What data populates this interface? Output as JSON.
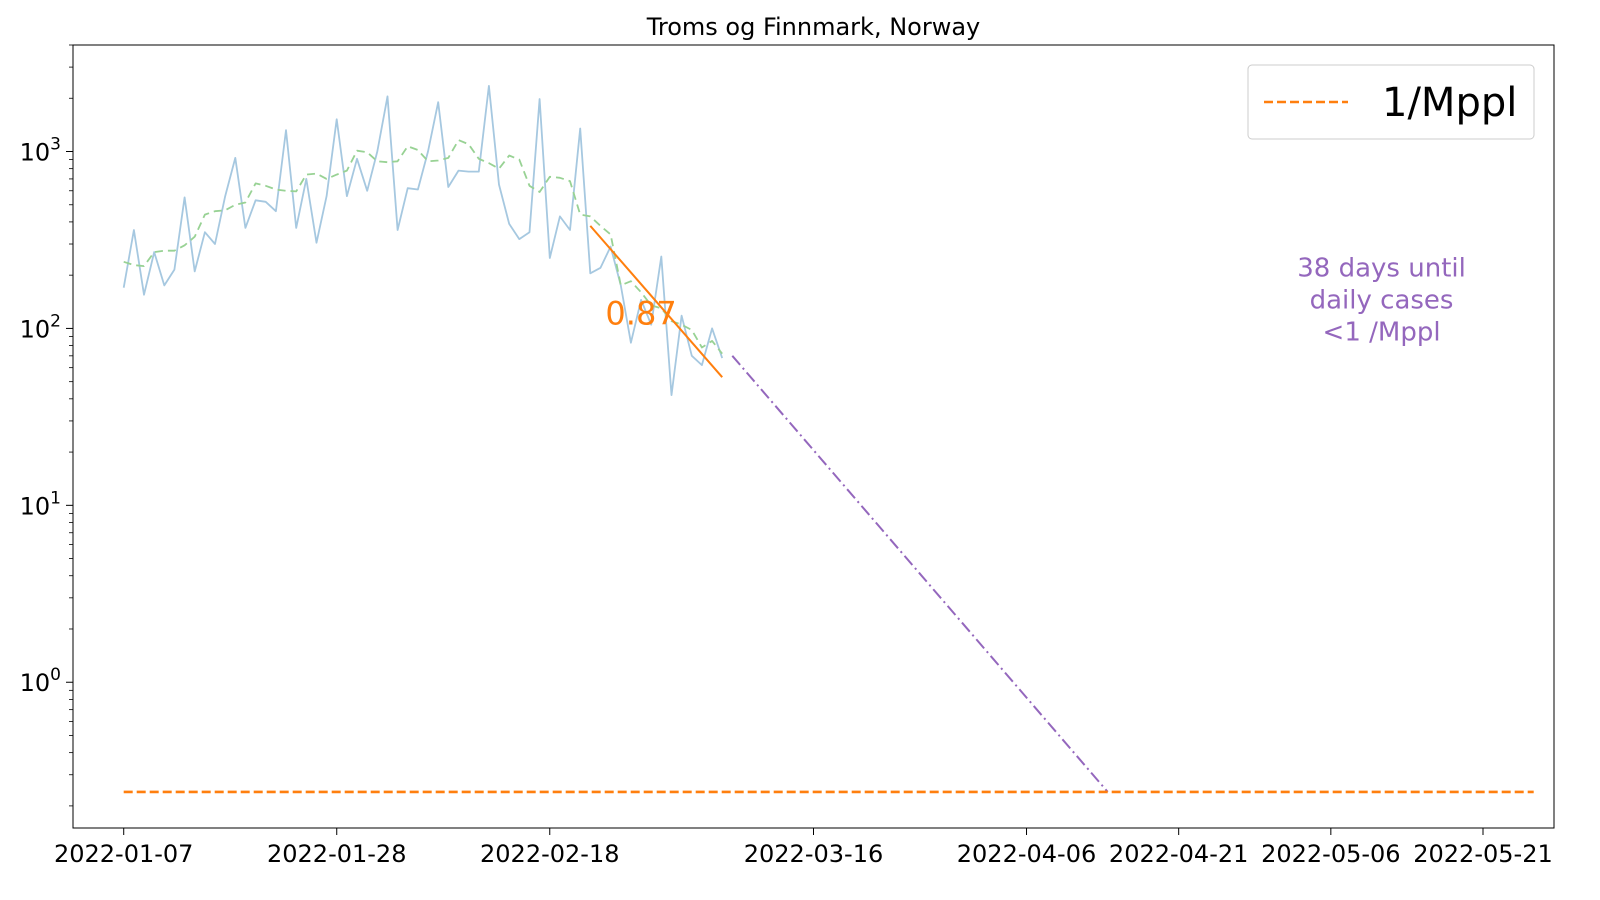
{
  "chart_data": {
    "type": "line",
    "title": "Troms og Finnmark, Norway",
    "xlabel": "",
    "ylabel": "",
    "y_scale": "log",
    "ylim": [
      0.15,
      4000
    ],
    "xlim": [
      "2022-01-02",
      "2022-05-28"
    ],
    "x_ticks": [
      "2022-01-07",
      "2022-01-28",
      "2022-02-18",
      "2022-03-16",
      "2022-04-06",
      "2022-04-21",
      "2022-05-06",
      "2022-05-21"
    ],
    "y_ticks": [
      {
        "value": 1,
        "base": "10",
        "exp": "0"
      },
      {
        "value": 10,
        "base": "10",
        "exp": "1"
      },
      {
        "value": 100,
        "base": "10",
        "exp": "2"
      },
      {
        "value": 1000,
        "base": "10",
        "exp": "3"
      }
    ],
    "grid": false,
    "colors": {
      "daily": "#a6c8e0",
      "rolling": "#98d294",
      "fit": "#ff7f0e",
      "projection": "#9467bd",
      "threshold": "#ff7f0e"
    },
    "series": [
      {
        "key": "daily",
        "style": "solid",
        "points": [
          [
            "2022-01-07",
            170
          ],
          [
            "2022-01-08",
            360
          ],
          [
            "2022-01-09",
            155
          ],
          [
            "2022-01-10",
            270
          ],
          [
            "2022-01-11",
            175
          ],
          [
            "2022-01-12",
            215
          ],
          [
            "2022-01-13",
            550
          ],
          [
            "2022-01-14",
            210
          ],
          [
            "2022-01-15",
            350
          ],
          [
            "2022-01-16",
            300
          ],
          [
            "2022-01-17",
            560
          ],
          [
            "2022-01-18",
            920
          ],
          [
            "2022-01-19",
            370
          ],
          [
            "2022-01-20",
            530
          ],
          [
            "2022-01-21",
            520
          ],
          [
            "2022-01-22",
            460
          ],
          [
            "2022-01-23",
            1320
          ],
          [
            "2022-01-24",
            370
          ],
          [
            "2022-01-25",
            700
          ],
          [
            "2022-01-26",
            305
          ],
          [
            "2022-01-27",
            560
          ],
          [
            "2022-01-28",
            1520
          ],
          [
            "2022-01-29",
            560
          ],
          [
            "2022-01-30",
            910
          ],
          [
            "2022-01-31",
            600
          ],
          [
            "2022-02-01",
            1000
          ],
          [
            "2022-02-02",
            2050
          ],
          [
            "2022-02-03",
            360
          ],
          [
            "2022-02-04",
            620
          ],
          [
            "2022-02-05",
            610
          ],
          [
            "2022-02-06",
            1000
          ],
          [
            "2022-02-07",
            1900
          ],
          [
            "2022-02-08",
            630
          ],
          [
            "2022-02-09",
            780
          ],
          [
            "2022-02-10",
            770
          ],
          [
            "2022-02-11",
            770
          ],
          [
            "2022-02-12",
            2350
          ],
          [
            "2022-02-13",
            650
          ],
          [
            "2022-02-14",
            390
          ],
          [
            "2022-02-15",
            320
          ],
          [
            "2022-02-16",
            350
          ],
          [
            "2022-02-17",
            1980
          ],
          [
            "2022-02-18",
            250
          ],
          [
            "2022-02-19",
            430
          ],
          [
            "2022-02-20",
            360
          ],
          [
            "2022-02-21",
            1350
          ],
          [
            "2022-02-22",
            205
          ],
          [
            "2022-02-23",
            220
          ],
          [
            "2022-02-24",
            290
          ],
          [
            "2022-02-25",
            175
          ],
          [
            "2022-02-26",
            83
          ],
          [
            "2022-02-27",
            145
          ],
          [
            "2022-02-28",
            105
          ],
          [
            "2022-03-01",
            255
          ],
          [
            "2022-03-02",
            42
          ],
          [
            "2022-03-03",
            118
          ],
          [
            "2022-03-04",
            70
          ],
          [
            "2022-03-05",
            62
          ],
          [
            "2022-03-06",
            100
          ],
          [
            "2022-03-07",
            68
          ]
        ]
      },
      {
        "key": "rolling",
        "style": "dashed",
        "points": [
          [
            "2022-01-07",
            238
          ],
          [
            "2022-01-08",
            228
          ],
          [
            "2022-01-09",
            225
          ],
          [
            "2022-01-10",
            270
          ],
          [
            "2022-01-11",
            275
          ],
          [
            "2022-01-12",
            275
          ],
          [
            "2022-01-13",
            295
          ],
          [
            "2022-01-14",
            330
          ],
          [
            "2022-01-15",
            440
          ],
          [
            "2022-01-16",
            460
          ],
          [
            "2022-01-17",
            465
          ],
          [
            "2022-01-18",
            500
          ],
          [
            "2022-01-19",
            515
          ],
          [
            "2022-01-20",
            660
          ],
          [
            "2022-01-21",
            640
          ],
          [
            "2022-01-22",
            610
          ],
          [
            "2022-01-23",
            600
          ],
          [
            "2022-01-24",
            595
          ],
          [
            "2022-01-25",
            740
          ],
          [
            "2022-01-26",
            750
          ],
          [
            "2022-01-27",
            700
          ],
          [
            "2022-01-28",
            740
          ],
          [
            "2022-01-29",
            780
          ],
          [
            "2022-01-30",
            1010
          ],
          [
            "2022-01-31",
            990
          ],
          [
            "2022-02-01",
            880
          ],
          [
            "2022-02-02",
            870
          ],
          [
            "2022-02-03",
            880
          ],
          [
            "2022-02-04",
            1070
          ],
          [
            "2022-02-05",
            1020
          ],
          [
            "2022-02-06",
            880
          ],
          [
            "2022-02-07",
            890
          ],
          [
            "2022-02-08",
            920
          ],
          [
            "2022-02-09",
            1160
          ],
          [
            "2022-02-10",
            1100
          ],
          [
            "2022-02-11",
            910
          ],
          [
            "2022-02-12",
            860
          ],
          [
            "2022-02-13",
            800
          ],
          [
            "2022-02-14",
            950
          ],
          [
            "2022-02-15",
            900
          ],
          [
            "2022-02-16",
            640
          ],
          [
            "2022-02-17",
            590
          ],
          [
            "2022-02-18",
            720
          ],
          [
            "2022-02-19",
            710
          ],
          [
            "2022-02-20",
            680
          ],
          [
            "2022-02-21",
            440
          ],
          [
            "2022-02-22",
            430
          ],
          [
            "2022-02-23",
            380
          ],
          [
            "2022-02-24",
            340
          ],
          [
            "2022-02-25",
            175
          ],
          [
            "2022-02-26",
            185
          ],
          [
            "2022-02-27",
            160
          ],
          [
            "2022-02-28",
            135
          ],
          [
            "2022-03-01",
            130
          ],
          [
            "2022-03-02",
            110
          ],
          [
            "2022-03-03",
            105
          ],
          [
            "2022-03-04",
            98
          ],
          [
            "2022-03-05",
            78
          ],
          [
            "2022-03-06",
            85
          ],
          [
            "2022-03-07",
            72
          ]
        ]
      },
      {
        "key": "fit",
        "style": "solid",
        "points": [
          [
            "2022-02-22",
            380
          ],
          [
            "2022-03-07",
            53
          ]
        ]
      },
      {
        "key": "projection",
        "style": "dashdot",
        "points": [
          [
            "2022-03-08",
            70
          ],
          [
            "2022-04-14",
            0.24
          ]
        ]
      },
      {
        "key": "threshold",
        "name": "1/Mppl",
        "style": "dashed",
        "points": [
          [
            "2022-01-07",
            0.24
          ],
          [
            "2022-05-26",
            0.24
          ]
        ]
      }
    ],
    "annotations": {
      "rate": {
        "text": "0.87",
        "x": "2022-02-27",
        "y": 105
      },
      "projection_note": {
        "lines": [
          "38 days until",
          "daily cases",
          "<1 /Mppl"
        ],
        "x": "2022-05-11",
        "y": 130
      }
    },
    "legend": {
      "position": "top-right",
      "label": "1/Mppl"
    }
  }
}
